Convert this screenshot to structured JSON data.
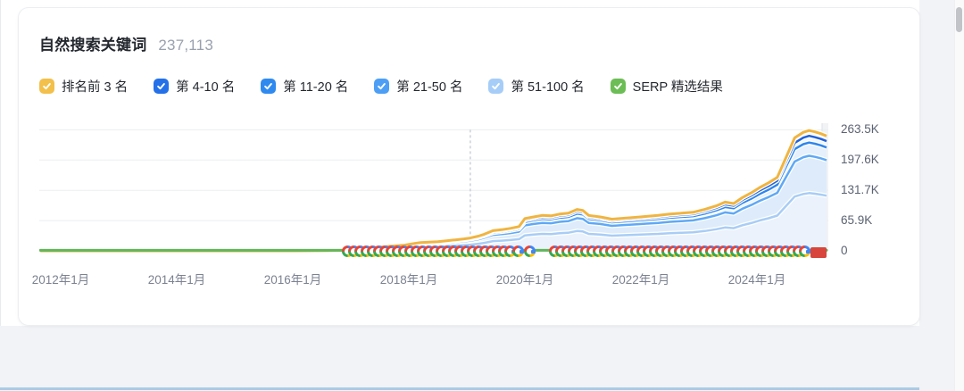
{
  "card": {
    "title": "自然搜索关键词",
    "value": "237,113"
  },
  "legend": [
    {
      "label": "排名前 3 名",
      "color": "#F2C04B",
      "checked": true
    },
    {
      "label": "第 4-10 名",
      "color": "#2470E8",
      "checked": true
    },
    {
      "label": "第 11-20 名",
      "color": "#2F8AF0",
      "checked": true
    },
    {
      "label": "第 21-50 名",
      "color": "#4D9FF5",
      "checked": true
    },
    {
      "label": "第 51-100 名",
      "color": "#A6CDF8",
      "checked": true
    },
    {
      "label": "SERP 精选结果",
      "color": "#6CBD55",
      "checked": true
    }
  ],
  "chart_data": {
    "type": "area",
    "stacked": true,
    "title": "自然搜索关键词",
    "total_label": "237,113",
    "x_unit": "years since 2012-01",
    "xlim": [
      -0.35,
      13.2
    ],
    "ylim": [
      0,
      274
    ],
    "y_unit": "K keywords",
    "grid": true,
    "legend_position": "top",
    "x": [
      -0.35,
      2,
      4,
      4.6,
      4.95,
      5.2,
      5.45,
      5.7,
      5.9,
      6.05,
      6.2,
      6.35,
      6.5,
      6.65,
      6.8,
      6.95,
      7.06,
      7.2,
      7.3,
      7.45,
      7.6,
      7.75,
      7.9,
      8.0,
      8.15,
      8.3,
      8.45,
      8.6,
      8.75,
      8.9,
      9.0,
      9.1,
      9.3,
      9.5,
      9.7,
      9.9,
      10.1,
      10.3,
      10.5,
      10.7,
      10.9,
      11.1,
      11.3,
      11.45,
      11.6,
      11.75,
      11.9,
      12.05,
      12.2,
      12.35,
      12.5,
      12.65,
      12.8,
      12.9,
      13.0,
      13.1,
      13.2
    ],
    "series": [
      {
        "name": "第 51-100 名",
        "line_color": "#A8CDF6",
        "fill": "#EBF2FB",
        "line_width": 2.5,
        "values": [
          0,
          0,
          0,
          0.2,
          0.7,
          1.9,
          3.4,
          4.8,
          5.8,
          7.2,
          8.6,
          9.1,
          9.6,
          10.6,
          11.5,
          12.5,
          13.4,
          15.4,
          17.3,
          21.1,
          22.1,
          23.5,
          25.4,
          33.6,
          35.5,
          37,
          36.5,
          38.4,
          39.4,
          43.2,
          42.2,
          37,
          35.5,
          33.1,
          34.1,
          35,
          36,
          37,
          38.4,
          39.4,
          40.3,
          43.2,
          47,
          50.9,
          49.4,
          55.7,
          60.5,
          66.2,
          71,
          76.8,
          97.4,
          118.1,
          123.8,
          125.8,
          124.3,
          122.4,
          120
        ]
      },
      {
        "name": "第 21-50 名",
        "line_color": "#5FA9F5",
        "fill": "#DEEBFA",
        "line_width": 2.5,
        "values": [
          0,
          0,
          0,
          0.2,
          0.5,
          1.2,
          2.2,
          3.1,
          3.7,
          4.7,
          5.6,
          5.9,
          6.2,
          6.8,
          7.4,
          8.1,
          8.7,
          9.9,
          11.2,
          13.6,
          14.3,
          15.2,
          16.4,
          21.7,
          22.9,
          23.9,
          23.6,
          24.8,
          25.4,
          27.9,
          27.3,
          23.9,
          22.9,
          21.4,
          22,
          22.6,
          23.3,
          23.9,
          24.8,
          25.4,
          26,
          27.9,
          30.4,
          32.9,
          31.9,
          36,
          39.1,
          42.8,
          45.9,
          49.6,
          62.9,
          76.3,
          80,
          81.2,
          80.3,
          79.1,
          77.5
        ]
      },
      {
        "name": "第 11-20 名",
        "line_color": "#2F86EC",
        "fill": "#E6F0FC",
        "line_width": 2.5,
        "values": [
          0,
          0,
          0,
          0.1,
          0.2,
          0.4,
          0.8,
          1.1,
          1.3,
          1.7,
          2,
          2.1,
          2.2,
          2.4,
          2.6,
          2.9,
          3.1,
          3.5,
          4,
          4.8,
          5.1,
          5.4,
          5.8,
          7.7,
          8.1,
          8.5,
          8.4,
          8.8,
          9,
          9.9,
          9.7,
          8.5,
          8.1,
          7.6,
          7.8,
          8,
          8.3,
          8.5,
          8.8,
          9,
          9.2,
          9.9,
          10.8,
          11.7,
          11.3,
          12.8,
          13.9,
          15.2,
          16.3,
          17.6,
          22.3,
          27.1,
          28.4,
          28.8,
          28.5,
          28.1,
          27.5
        ]
      },
      {
        "name": "第 4-10 名",
        "line_color": "#2061D9",
        "fill": "#EFF5FE",
        "line_width": 2.5,
        "values": [
          0,
          0,
          0,
          0,
          0.1,
          0.2,
          0.4,
          0.6,
          0.7,
          0.8,
          1,
          1,
          1.1,
          1.2,
          1.3,
          1.4,
          1.5,
          1.8,
          2,
          2.4,
          2.5,
          2.7,
          2.9,
          3.9,
          4.1,
          4.2,
          4.2,
          4.4,
          4.5,
          5,
          4.8,
          4.2,
          4.1,
          3.8,
          3.9,
          4,
          4.1,
          4.2,
          4.4,
          4.5,
          4.6,
          5,
          5.4,
          5.8,
          5.7,
          6.4,
          6.9,
          7.6,
          8.1,
          8.8,
          11.2,
          13.5,
          14.2,
          14.4,
          14.2,
          14,
          13.8
        ]
      },
      {
        "name": "排名前 3 名",
        "line_color": "#F0B440",
        "fill": "#FCF3DE",
        "line_width": 3,
        "values": [
          0,
          0,
          0,
          0,
          0.1,
          0.2,
          0.3,
          0.5,
          0.5,
          0.7,
          0.8,
          0.9,
          0.9,
          1,
          1.1,
          1.2,
          1.3,
          1.4,
          1.6,
          2,
          2.1,
          2.2,
          2.4,
          3.2,
          3.3,
          3.5,
          3.4,
          3.6,
          3.7,
          4.1,
          4,
          3.5,
          3.3,
          3.1,
          3.2,
          3.3,
          3.4,
          3.5,
          3.6,
          3.7,
          3.8,
          4.1,
          4.4,
          4.8,
          4.6,
          5.2,
          5.7,
          6.2,
          6.7,
          7.2,
          9.1,
          11.1,
          11.6,
          11.8,
          11.7,
          11.5,
          11.3
        ]
      }
    ],
    "overlay_line": {
      "name": "SERP 精选结果",
      "color": "#5FB65A",
      "value": 1.2,
      "line_width": 3
    },
    "y_ticks": [
      {
        "label": "263.5K",
        "value": 263.5
      },
      {
        "label": "197.6K",
        "value": 197.6
      },
      {
        "label": "131.7K",
        "value": 131.7
      },
      {
        "label": "65.9K",
        "value": 65.9
      },
      {
        "label": "0",
        "value": 0
      }
    ],
    "x_ticks": [
      {
        "label": "2012年1月",
        "t": 0
      },
      {
        "label": "2014年1月",
        "t": 2
      },
      {
        "label": "2016年1月",
        "t": 4
      },
      {
        "label": "2018年1月",
        "t": 6
      },
      {
        "label": "2020年1月",
        "t": 8
      },
      {
        "label": "2022年1月",
        "t": 10
      },
      {
        "label": "2024年1月",
        "t": 12
      }
    ],
    "annotations": {
      "dashed_marker_t": 7.06,
      "google_updates": {
        "name": "google-update-markers",
        "segments": [
          {
            "from_t": 4.95,
            "to_t": 7.78
          },
          {
            "from_t": 8.52,
            "to_t": 12.9
          }
        ],
        "single_t": [
          7.89,
          8.09
        ],
        "end_block_t": [
          12.92,
          13.2
        ]
      }
    }
  }
}
